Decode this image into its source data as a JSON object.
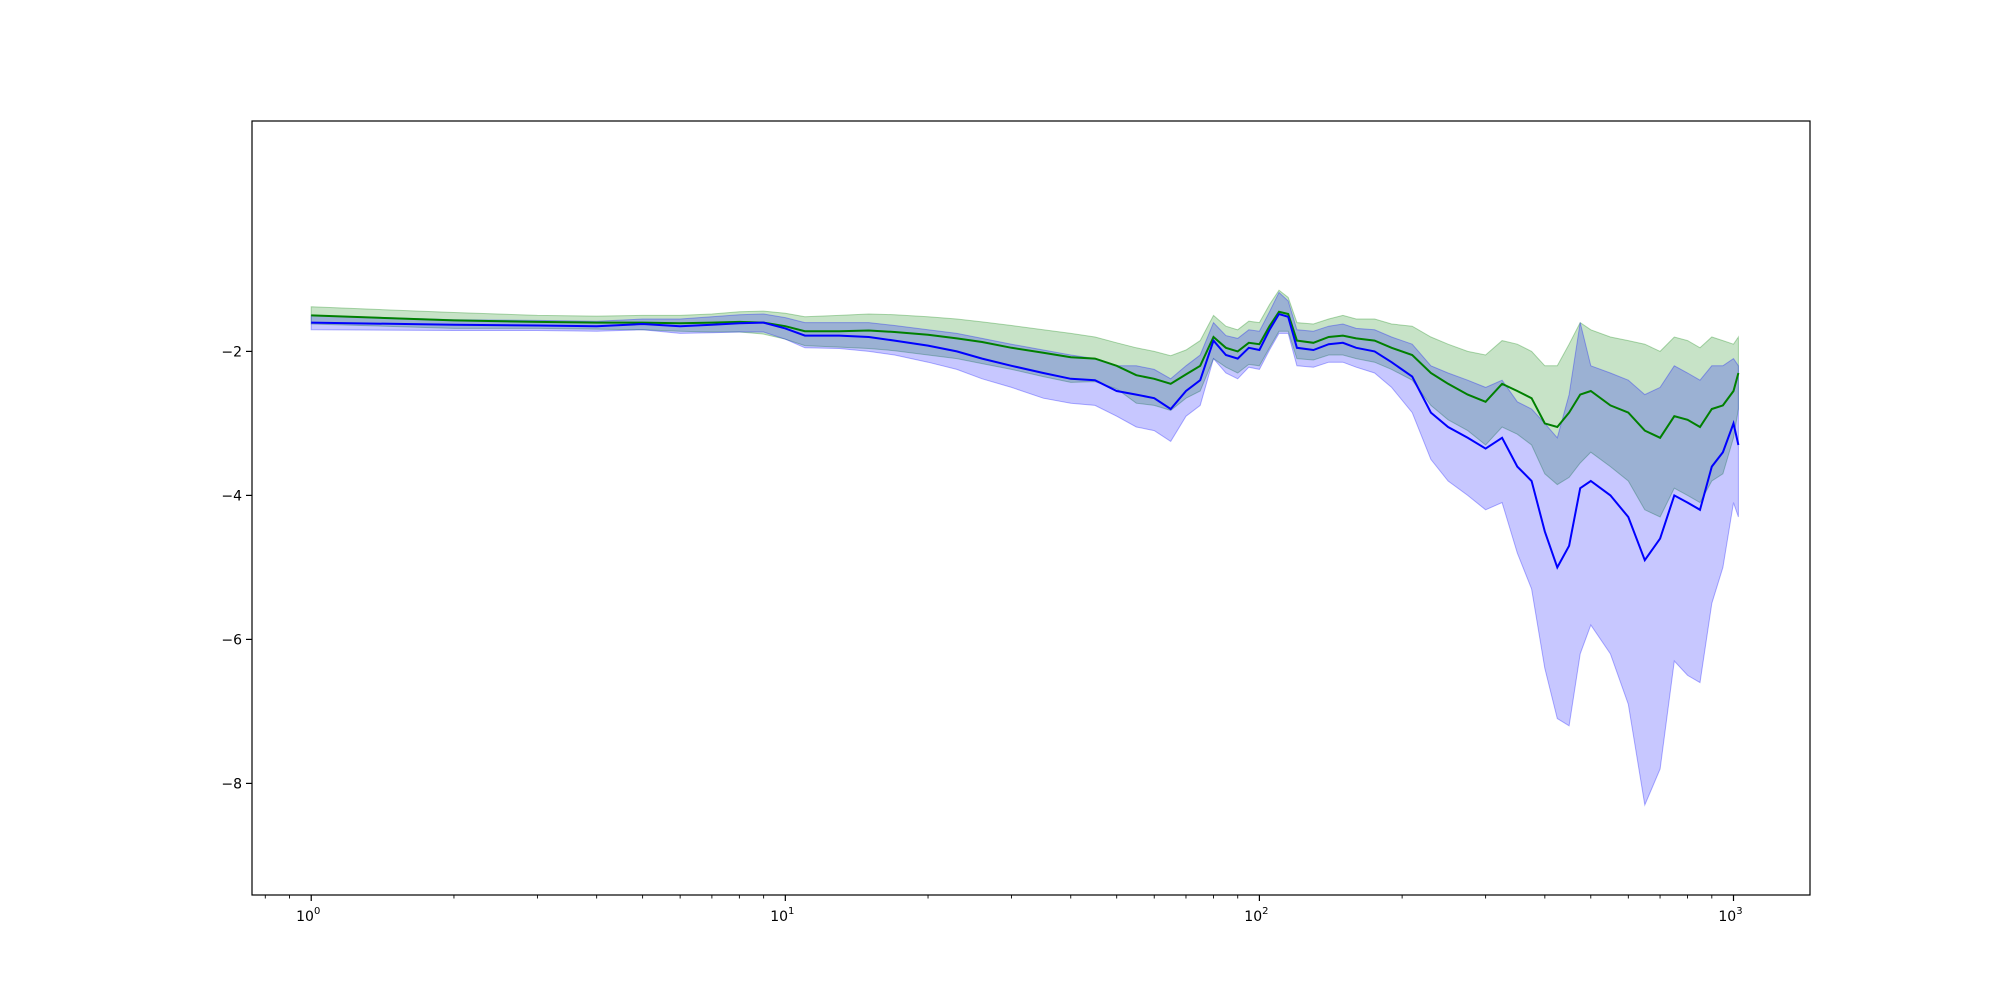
{
  "chart_data": {
    "type": "line",
    "xscale": "log",
    "xlim": [
      0.75,
      1450
    ],
    "ylim": [
      -9.55,
      1.2
    ],
    "grid": false,
    "legend": "none",
    "x_ticks": [
      {
        "value": 1,
        "base": "10",
        "exp": "0"
      },
      {
        "value": 10,
        "base": "10",
        "exp": "1"
      },
      {
        "value": 100,
        "base": "10",
        "exp": "2"
      },
      {
        "value": 1000,
        "base": "10",
        "exp": "3"
      }
    ],
    "y_ticks": [
      {
        "value": -2,
        "label": "−2"
      },
      {
        "value": -4,
        "label": "−4"
      },
      {
        "value": -6,
        "label": "−6"
      },
      {
        "value": -8,
        "label": "−8"
      }
    ],
    "series": [
      {
        "color": "#008000",
        "band_color": "#008000",
        "points": [
          [
            1,
            -1.5,
            -1.38,
            -1.62
          ],
          [
            2,
            -1.57,
            -1.46,
            -1.68
          ],
          [
            3,
            -1.59,
            -1.5,
            -1.68
          ],
          [
            4,
            -1.6,
            -1.51,
            -1.69
          ],
          [
            5,
            -1.6,
            -1.5,
            -1.7
          ],
          [
            6,
            -1.61,
            -1.5,
            -1.72
          ],
          [
            7,
            -1.6,
            -1.48,
            -1.73
          ],
          [
            8,
            -1.59,
            -1.45,
            -1.73
          ],
          [
            9,
            -1.6,
            -1.44,
            -1.76
          ],
          [
            10,
            -1.65,
            -1.47,
            -1.83
          ],
          [
            11,
            -1.72,
            -1.52,
            -1.92
          ],
          [
            13,
            -1.72,
            -1.5,
            -1.94
          ],
          [
            15,
            -1.71,
            -1.48,
            -1.96
          ],
          [
            17,
            -1.73,
            -1.49,
            -1.99
          ],
          [
            20,
            -1.77,
            -1.52,
            -2.05
          ],
          [
            23,
            -1.82,
            -1.55,
            -2.1
          ],
          [
            26,
            -1.87,
            -1.59,
            -2.17
          ],
          [
            30,
            -1.95,
            -1.64,
            -2.25
          ],
          [
            35,
            -2.02,
            -1.7,
            -2.35
          ],
          [
            40,
            -2.08,
            -1.75,
            -2.43
          ],
          [
            45,
            -2.1,
            -1.8,
            -2.42
          ],
          [
            50,
            -2.2,
            -1.88,
            -2.52
          ],
          [
            55,
            -2.33,
            -1.95,
            -2.72
          ],
          [
            60,
            -2.38,
            -2.0,
            -2.75
          ],
          [
            65,
            -2.45,
            -2.06,
            -2.82
          ],
          [
            70,
            -2.32,
            -1.98,
            -2.65
          ],
          [
            75,
            -2.2,
            -1.85,
            -2.55
          ],
          [
            80,
            -1.8,
            -1.5,
            -2.1
          ],
          [
            85,
            -1.95,
            -1.65,
            -2.22
          ],
          [
            90,
            -2.0,
            -1.7,
            -2.3
          ],
          [
            95,
            -1.88,
            -1.58,
            -2.18
          ],
          [
            100,
            -1.9,
            -1.6,
            -2.2
          ],
          [
            105,
            -1.65,
            -1.35,
            -1.95
          ],
          [
            110,
            -1.45,
            -1.15,
            -1.72
          ],
          [
            115,
            -1.48,
            -1.25,
            -1.72
          ],
          [
            120,
            -1.85,
            -1.6,
            -2.1
          ],
          [
            130,
            -1.88,
            -1.62,
            -2.12
          ],
          [
            140,
            -1.8,
            -1.55,
            -2.05
          ],
          [
            150,
            -1.78,
            -1.5,
            -2.05
          ],
          [
            160,
            -1.82,
            -1.55,
            -2.1
          ],
          [
            175,
            -1.85,
            -1.55,
            -2.15
          ],
          [
            190,
            -1.95,
            -1.62,
            -2.25
          ],
          [
            210,
            -2.05,
            -1.65,
            -2.4
          ],
          [
            230,
            -2.3,
            -1.8,
            -2.75
          ],
          [
            250,
            -2.45,
            -1.9,
            -2.95
          ],
          [
            275,
            -2.6,
            -2.0,
            -3.1
          ],
          [
            300,
            -2.7,
            -2.05,
            -3.3
          ],
          [
            325,
            -2.45,
            -1.85,
            -3.05
          ],
          [
            350,
            -2.55,
            -1.9,
            -3.15
          ],
          [
            375,
            -2.65,
            -2.0,
            -3.3
          ],
          [
            400,
            -3.0,
            -2.2,
            -3.7
          ],
          [
            425,
            -3.05,
            -2.2,
            -3.85
          ],
          [
            450,
            -2.85,
            -1.9,
            -3.75
          ],
          [
            475,
            -2.6,
            -1.6,
            -3.55
          ],
          [
            500,
            -2.55,
            -1.7,
            -3.4
          ],
          [
            550,
            -2.75,
            -1.8,
            -3.6
          ],
          [
            600,
            -2.85,
            -1.85,
            -3.8
          ],
          [
            650,
            -3.1,
            -1.9,
            -4.2
          ],
          [
            700,
            -3.2,
            -2.0,
            -4.3
          ],
          [
            750,
            -2.9,
            -1.8,
            -3.9
          ],
          [
            800,
            -2.95,
            -1.85,
            -4.0
          ],
          [
            850,
            -3.05,
            -1.95,
            -4.1
          ],
          [
            900,
            -2.8,
            -1.8,
            -3.8
          ],
          [
            950,
            -2.75,
            -1.85,
            -3.7
          ],
          [
            1000,
            -2.55,
            -1.9,
            -3.2
          ],
          [
            1024,
            -2.3,
            -1.8,
            -2.8
          ]
        ]
      },
      {
        "color": "#0000ff",
        "band_color": "#0000ff",
        "points": [
          [
            1,
            -1.6,
            -1.5,
            -1.7
          ],
          [
            2,
            -1.63,
            -1.56,
            -1.71
          ],
          [
            3,
            -1.64,
            -1.57,
            -1.71
          ],
          [
            4,
            -1.65,
            -1.58,
            -1.72
          ],
          [
            5,
            -1.62,
            -1.55,
            -1.7
          ],
          [
            6,
            -1.65,
            -1.55,
            -1.75
          ],
          [
            7,
            -1.63,
            -1.52,
            -1.74
          ],
          [
            8,
            -1.61,
            -1.49,
            -1.73
          ],
          [
            9,
            -1.6,
            -1.48,
            -1.73
          ],
          [
            10,
            -1.68,
            -1.53,
            -1.83
          ],
          [
            11,
            -1.78,
            -1.6,
            -1.95
          ],
          [
            13,
            -1.78,
            -1.6,
            -1.96
          ],
          [
            15,
            -1.8,
            -1.6,
            -2.0
          ],
          [
            17,
            -1.85,
            -1.64,
            -2.05
          ],
          [
            20,
            -1.92,
            -1.7,
            -2.15
          ],
          [
            23,
            -2.0,
            -1.75,
            -2.25
          ],
          [
            26,
            -2.1,
            -1.82,
            -2.38
          ],
          [
            30,
            -2.2,
            -1.9,
            -2.5
          ],
          [
            35,
            -2.3,
            -1.98,
            -2.65
          ],
          [
            40,
            -2.38,
            -2.05,
            -2.72
          ],
          [
            45,
            -2.4,
            -2.1,
            -2.75
          ],
          [
            50,
            -2.55,
            -2.2,
            -2.9
          ],
          [
            55,
            -2.6,
            -2.2,
            -3.05
          ],
          [
            60,
            -2.65,
            -2.25,
            -3.1
          ],
          [
            65,
            -2.8,
            -2.38,
            -3.25
          ],
          [
            70,
            -2.55,
            -2.2,
            -2.9
          ],
          [
            75,
            -2.4,
            -2.05,
            -2.75
          ],
          [
            80,
            -1.85,
            -1.6,
            -2.1
          ],
          [
            85,
            -2.05,
            -1.78,
            -2.3
          ],
          [
            90,
            -2.1,
            -1.82,
            -2.38
          ],
          [
            95,
            -1.95,
            -1.7,
            -2.22
          ],
          [
            100,
            -1.98,
            -1.72,
            -2.25
          ],
          [
            105,
            -1.7,
            -1.45,
            -1.98
          ],
          [
            110,
            -1.48,
            -1.18,
            -1.75
          ],
          [
            115,
            -1.52,
            -1.3,
            -1.75
          ],
          [
            120,
            -1.95,
            -1.7,
            -2.2
          ],
          [
            130,
            -1.98,
            -1.72,
            -2.22
          ],
          [
            140,
            -1.9,
            -1.65,
            -2.15
          ],
          [
            150,
            -1.88,
            -1.62,
            -2.15
          ],
          [
            160,
            -1.95,
            -1.68,
            -2.22
          ],
          [
            175,
            -2.0,
            -1.7,
            -2.3
          ],
          [
            190,
            -2.15,
            -1.8,
            -2.5
          ],
          [
            210,
            -2.35,
            -1.9,
            -2.85
          ],
          [
            230,
            -2.85,
            -2.2,
            -3.5
          ],
          [
            250,
            -3.05,
            -2.3,
            -3.8
          ],
          [
            275,
            -3.2,
            -2.4,
            -4.0
          ],
          [
            300,
            -3.35,
            -2.5,
            -4.2
          ],
          [
            325,
            -3.2,
            -2.4,
            -4.1
          ],
          [
            350,
            -3.6,
            -2.7,
            -4.8
          ],
          [
            375,
            -3.8,
            -2.8,
            -5.3
          ],
          [
            400,
            -4.5,
            -3.0,
            -6.4
          ],
          [
            425,
            -5.0,
            -3.2,
            -7.1
          ],
          [
            450,
            -4.7,
            -2.6,
            -7.2
          ],
          [
            475,
            -3.9,
            -1.6,
            -6.2
          ],
          [
            500,
            -3.8,
            -2.2,
            -5.8
          ],
          [
            550,
            -4.0,
            -2.3,
            -6.2
          ],
          [
            600,
            -4.3,
            -2.4,
            -6.9
          ],
          [
            650,
            -4.9,
            -2.6,
            -8.3
          ],
          [
            700,
            -4.6,
            -2.5,
            -7.8
          ],
          [
            750,
            -4.0,
            -2.2,
            -6.3
          ],
          [
            800,
            -4.1,
            -2.3,
            -6.5
          ],
          [
            850,
            -4.2,
            -2.4,
            -6.6
          ],
          [
            900,
            -3.6,
            -2.2,
            -5.5
          ],
          [
            950,
            -3.4,
            -2.2,
            -5.0
          ],
          [
            1000,
            -3.0,
            -2.1,
            -4.1
          ],
          [
            1024,
            -3.3,
            -2.2,
            -4.3
          ]
        ]
      }
    ]
  }
}
